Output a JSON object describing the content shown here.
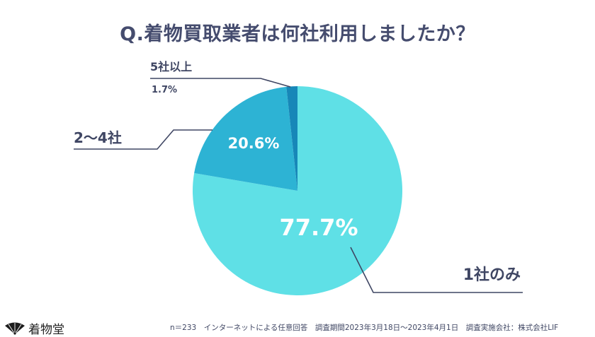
{
  "title": "Q.着物買取業者は何社利用しましたか？",
  "chart_data": {
    "type": "pie",
    "slices": [
      {
        "label": "1社のみ",
        "value": 77.7,
        "display": "77.7%",
        "color": "#5fe0e6"
      },
      {
        "label": "2〜4社",
        "value": 20.6,
        "display": "20.6%",
        "color": "#2db3d4"
      },
      {
        "label": "5社以上",
        "value": 1.7,
        "display": "1.7%",
        "color": "#1787b8"
      }
    ],
    "start": "12 o'clock",
    "direction": "clockwise"
  },
  "footer": {
    "note": "n＝233　インターネットによる任意回答　調査期間2023年3月18日〜2023年4月1日　調査実施会社：株式会社LIF"
  },
  "logo": {
    "text": "着物堂",
    "icon": "hand-fan-icon"
  }
}
